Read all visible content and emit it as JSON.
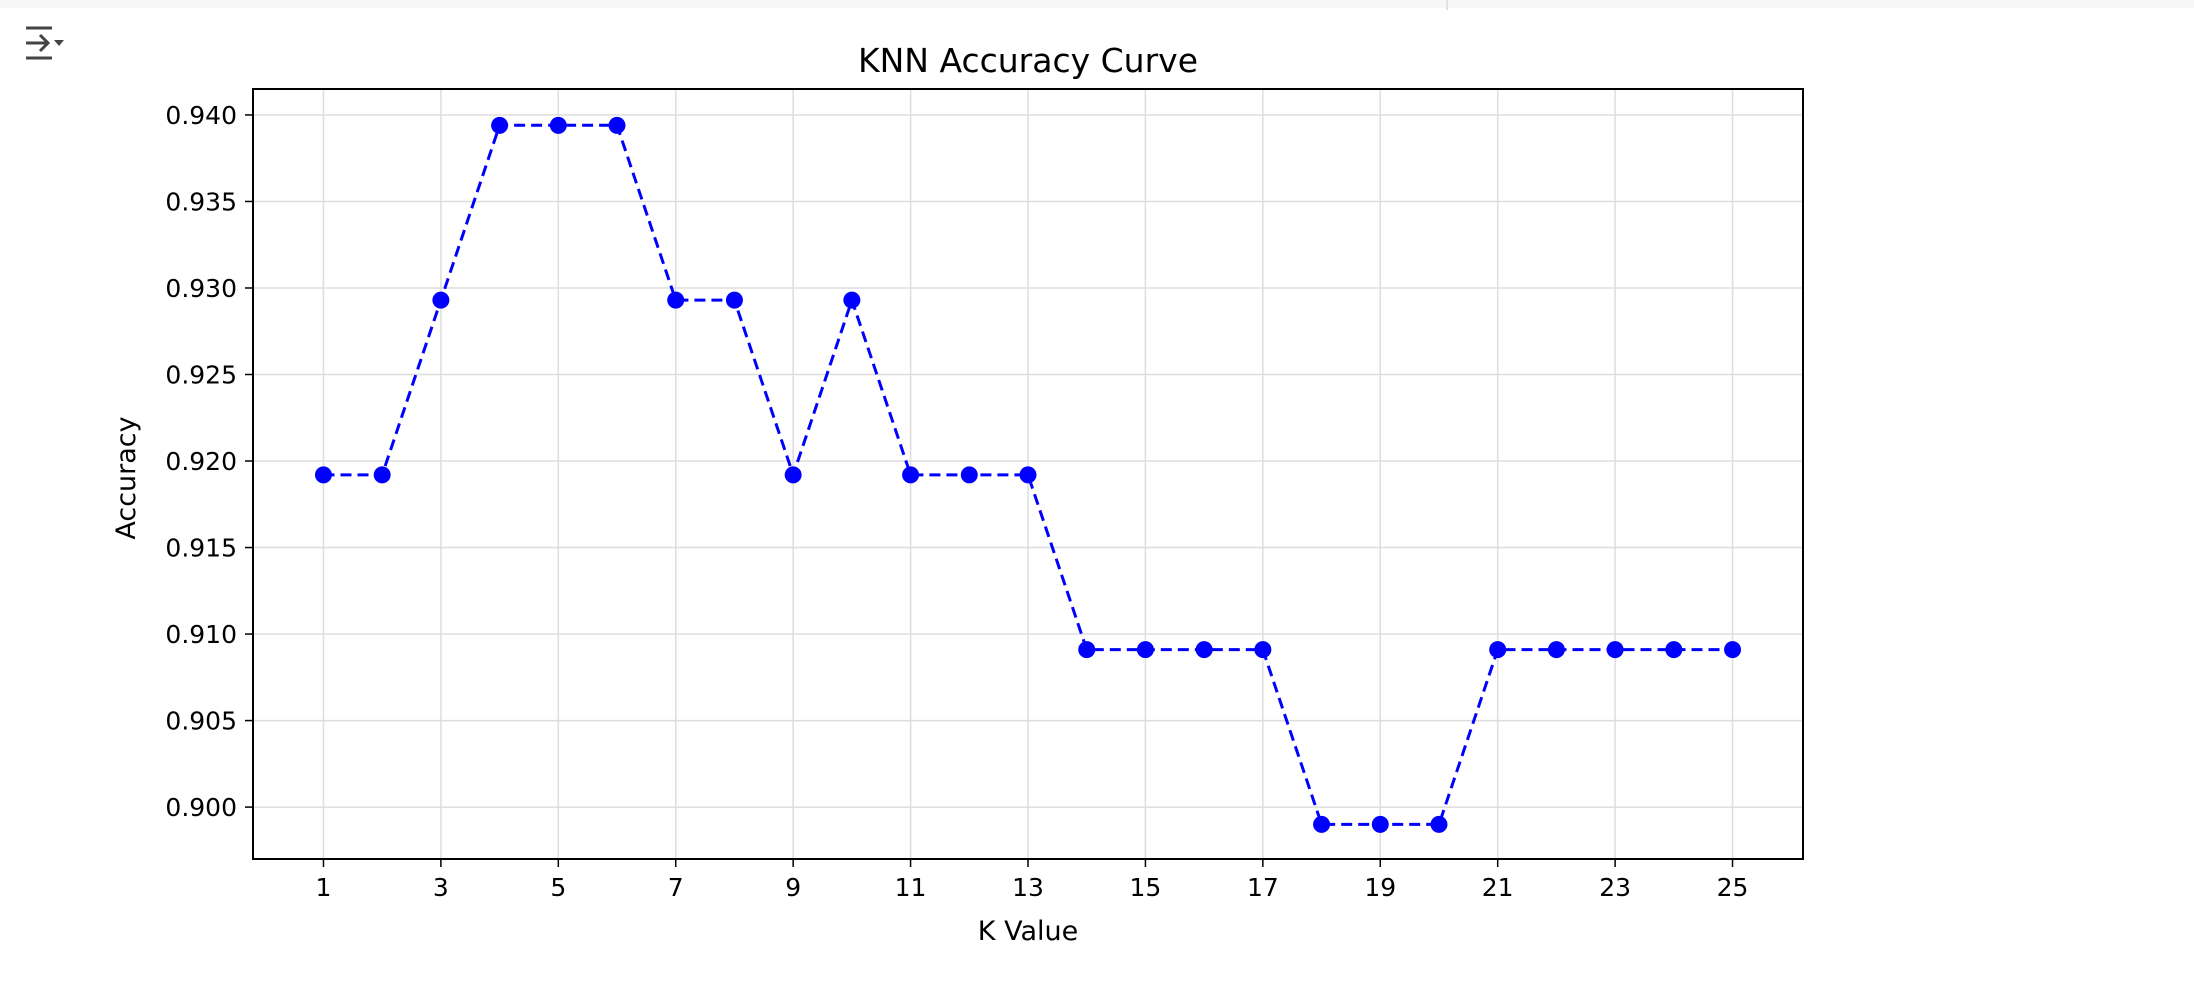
{
  "cell": {
    "output_toggle_icon": "output-collapse-icon"
  },
  "chart_data": {
    "type": "line",
    "title": "KNN Accuracy Curve",
    "xlabel": "K Value",
    "ylabel": "Accuracy",
    "x": [
      1,
      2,
      3,
      4,
      5,
      6,
      7,
      8,
      9,
      10,
      11,
      12,
      13,
      14,
      15,
      16,
      17,
      18,
      19,
      20,
      21,
      22,
      23,
      24,
      25
    ],
    "series": [
      {
        "values": [
          0.9192,
          0.9192,
          0.9293,
          0.9394,
          0.9394,
          0.9394,
          0.9293,
          0.9293,
          0.9192,
          0.9293,
          0.9192,
          0.9192,
          0.9192,
          0.9091,
          0.9091,
          0.9091,
          0.9091,
          0.899,
          0.899,
          0.899,
          0.9091,
          0.9091,
          0.9091,
          0.9091,
          0.9091
        ],
        "color": "#0000ff",
        "line_style": "dashed",
        "marker": "circle"
      }
    ],
    "xticks": [
      "1",
      "3",
      "5",
      "7",
      "9",
      "11",
      "13",
      "15",
      "17",
      "19",
      "21",
      "23",
      "25"
    ],
    "yticks": [
      "0.900",
      "0.905",
      "0.910",
      "0.915",
      "0.920",
      "0.925",
      "0.930",
      "0.935",
      "0.940"
    ],
    "xlim": [
      -0.2,
      26.2
    ],
    "ylim": [
      0.897,
      0.9415
    ],
    "grid": true
  }
}
